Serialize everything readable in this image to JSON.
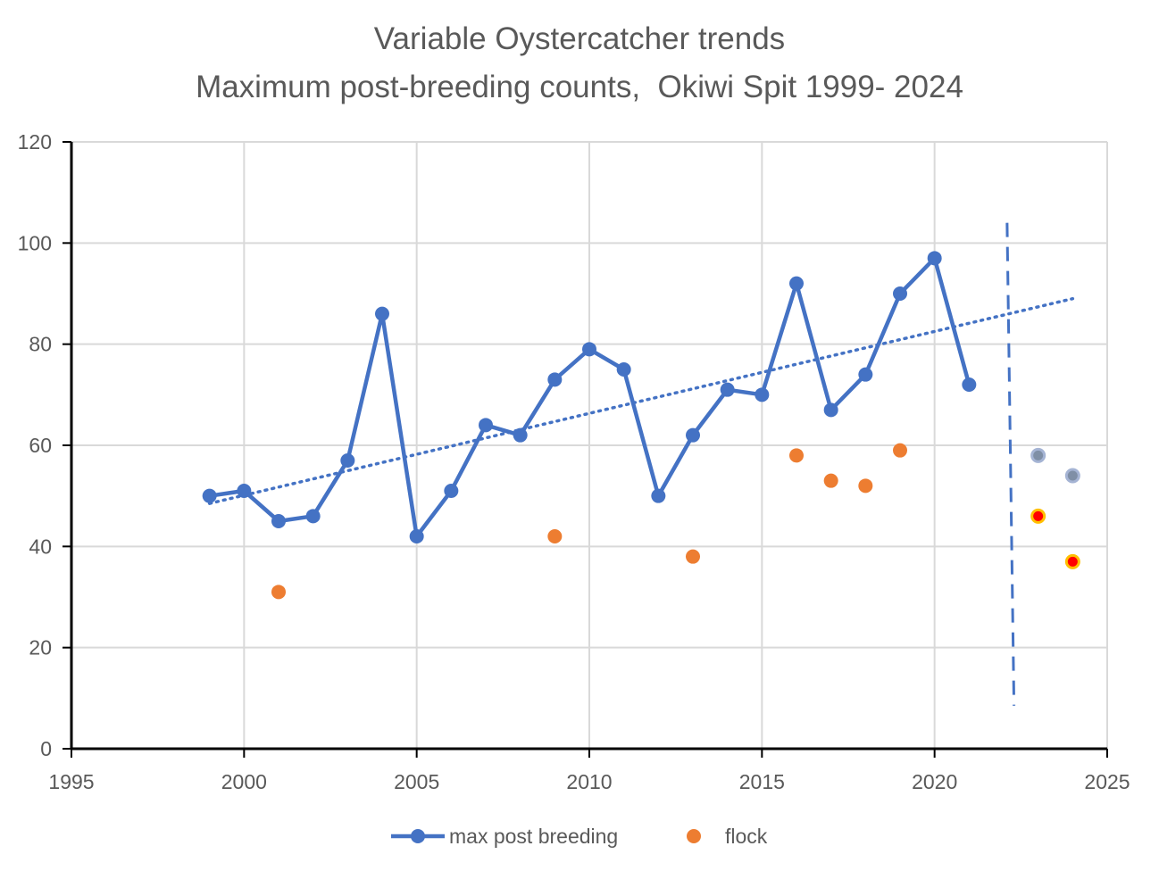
{
  "chart_data": {
    "type": "line",
    "title": "Variable Oystercatcher trends",
    "subtitle": "Maximum post-breeding counts,  Okiwi Spit 1999- 2024",
    "xlabel": "",
    "ylabel": "",
    "xlim": [
      1995,
      2025
    ],
    "ylim": [
      0,
      120
    ],
    "x_ticks": [
      "1995",
      "2000",
      "2005",
      "2010",
      "2015",
      "2020",
      "2025"
    ],
    "y_ticks": [
      "0",
      "20",
      "40",
      "60",
      "80",
      "100",
      "120"
    ],
    "grid": true,
    "legend_position": "bottom",
    "series": [
      {
        "name": "max post breeding",
        "kind": "line-markers",
        "color": "#4472c4",
        "x": [
          1999,
          2000,
          2001,
          2002,
          2003,
          2004,
          2005,
          2006,
          2007,
          2008,
          2009,
          2010,
          2011,
          2012,
          2013,
          2014,
          2015,
          2016,
          2017,
          2018,
          2019,
          2020,
          2021
        ],
        "y": [
          50,
          51,
          45,
          46,
          57,
          86,
          42,
          51,
          64,
          62,
          73,
          79,
          75,
          50,
          62,
          71,
          70,
          92,
          67,
          74,
          90,
          97,
          72
        ]
      },
      {
        "name": "flock",
        "kind": "markers",
        "color": "#ed7d31",
        "x": [
          2001,
          2009,
          2013,
          2016,
          2017,
          2018,
          2019
        ],
        "y": [
          31,
          42,
          38,
          58,
          53,
          52,
          59
        ]
      },
      {
        "name": "",
        "kind": "markers",
        "color": "#7f8fa6",
        "stroke": "#a5b4d4",
        "show_in_legend": false,
        "x": [
          2023,
          2024
        ],
        "y": [
          58,
          54
        ]
      },
      {
        "name": "",
        "kind": "markers",
        "color": "#ff0000",
        "stroke": "#ffc000",
        "show_in_legend": false,
        "x": [
          2023,
          2024
        ],
        "y": [
          46,
          37
        ]
      }
    ],
    "trendline": {
      "of_series": "max post breeding",
      "style": "dotted",
      "color": "#4472c4",
      "x": [
        1999,
        2024
      ],
      "y": [
        48.5,
        89
      ]
    },
    "reference_line": {
      "style": "dashed",
      "color": "#4472c4",
      "x": [
        2022.1,
        2022.3
      ],
      "y": [
        104,
        8.5
      ]
    }
  }
}
